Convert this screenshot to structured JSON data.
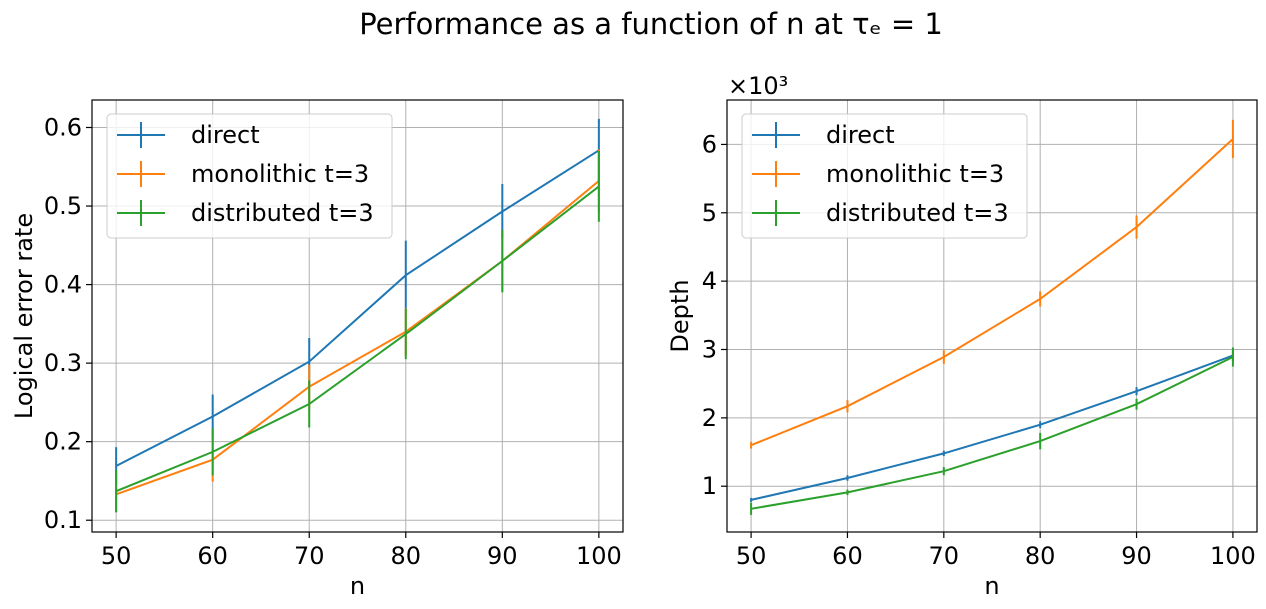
{
  "figure": {
    "title": "Performance as a function of n at τₑ = 1"
  },
  "chart_data": [
    {
      "type": "line",
      "xlabel": "n",
      "ylabel": "Logical error rate",
      "xlim": [
        47.5,
        102.5
      ],
      "ylim": [
        0.085,
        0.635
      ],
      "xticks": [
        50,
        60,
        70,
        80,
        90,
        100
      ],
      "yticks": [
        0.1,
        0.2,
        0.3,
        0.4,
        0.5,
        0.6
      ],
      "ytick_labels": [
        "0.1",
        "0.2",
        "0.3",
        "0.4",
        "0.5",
        "0.6"
      ],
      "offset_text": "",
      "grid": true,
      "legend_position": "upper-left",
      "x": [
        50,
        60,
        70,
        80,
        90,
        100
      ],
      "series": [
        {
          "name": "direct",
          "color": "#1f77b4",
          "values": [
            0.169,
            0.232,
            0.302,
            0.412,
            0.493,
            0.571
          ],
          "errors": [
            0.024,
            0.028,
            0.03,
            0.044,
            0.035,
            0.04
          ]
        },
        {
          "name": "monolithic t=3",
          "color": "#ff7f0e",
          "values": [
            0.133,
            0.177,
            0.27,
            0.34,
            0.43,
            0.532
          ],
          "errors": [
            0.022,
            0.028,
            0.028,
            0.03,
            0.038,
            0.04
          ]
        },
        {
          "name": "distributed t=3",
          "color": "#2ca02c",
          "values": [
            0.137,
            0.187,
            0.248,
            0.337,
            0.43,
            0.525
          ],
          "errors": [
            0.027,
            0.03,
            0.03,
            0.032,
            0.04,
            0.045
          ]
        }
      ]
    },
    {
      "type": "line",
      "xlabel": "n",
      "ylabel": "Depth",
      "xlim": [
        47.5,
        102.5
      ],
      "ylim": [
        330,
        6650
      ],
      "xticks": [
        50,
        60,
        70,
        80,
        90,
        100
      ],
      "yticks": [
        1000,
        2000,
        3000,
        4000,
        5000,
        6000
      ],
      "ytick_labels": [
        "1",
        "2",
        "3",
        "4",
        "5",
        "6"
      ],
      "offset_text": "×10³",
      "grid": true,
      "legend_position": "upper-left",
      "x": [
        50,
        60,
        70,
        80,
        90,
        100
      ],
      "series": [
        {
          "name": "direct",
          "color": "#1f77b4",
          "values": [
            800,
            1120,
            1480,
            1900,
            2390,
            2910
          ],
          "errors": [
            30,
            40,
            40,
            50,
            60,
            80
          ]
        },
        {
          "name": "monolithic t=3",
          "color": "#ff7f0e",
          "values": [
            1600,
            2170,
            2890,
            3740,
            4790,
            6080
          ],
          "errors": [
            50,
            90,
            100,
            110,
            170,
            280
          ]
        },
        {
          "name": "distributed t=3",
          "color": "#2ca02c",
          "values": [
            670,
            910,
            1220,
            1660,
            2200,
            2890
          ],
          "errors": [
            90,
            40,
            60,
            120,
            80,
            140
          ]
        }
      ]
    }
  ]
}
